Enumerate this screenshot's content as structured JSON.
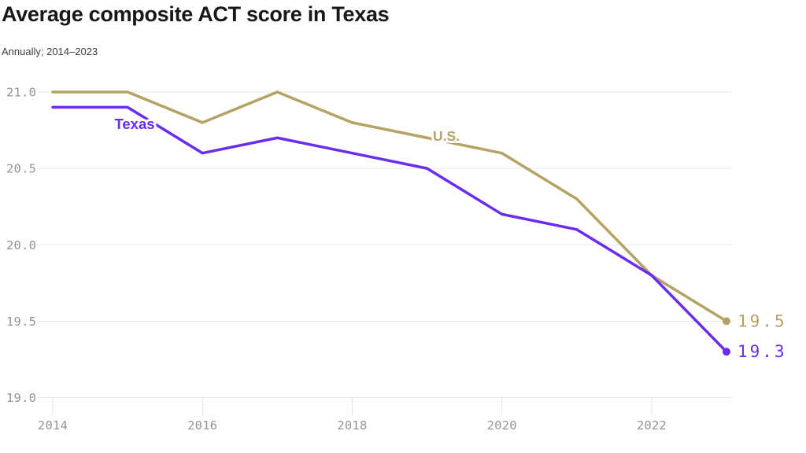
{
  "chart_data": {
    "type": "line",
    "title": "Average composite ACT score in Texas",
    "subtitle": "Annually; 2014–2023",
    "x": [
      2014,
      2015,
      2016,
      2017,
      2018,
      2019,
      2020,
      2021,
      2022,
      2023
    ],
    "series": [
      {
        "name": "U.S.",
        "color": "#b5a265",
        "values": [
          21.0,
          21.0,
          20.8,
          21.0,
          20.8,
          20.7,
          20.6,
          20.3,
          19.8,
          19.5
        ],
        "end_label": "19.5"
      },
      {
        "name": "Texas",
        "color": "#6a2df0",
        "values": [
          20.9,
          20.9,
          20.6,
          20.7,
          20.6,
          20.5,
          20.2,
          20.1,
          19.8,
          19.3
        ],
        "end_label": "19.3"
      }
    ],
    "ylim": [
      19.0,
      21.0
    ],
    "yticks": [
      {
        "value": 21.0,
        "label": "21.0"
      },
      {
        "value": 20.5,
        "label": "20.5"
      },
      {
        "value": 20.0,
        "label": "20.0"
      },
      {
        "value": 19.5,
        "label": "19.5"
      },
      {
        "value": 19.0,
        "label": "19.0"
      }
    ],
    "xticks": [
      {
        "value": 2014,
        "label": "2014"
      },
      {
        "value": 2016,
        "label": "2016"
      },
      {
        "value": 2018,
        "label": "2018"
      },
      {
        "value": 2020,
        "label": "2020"
      },
      {
        "value": 2022,
        "label": "2022"
      }
    ],
    "grid": "horizontal",
    "legend": "inline-labels",
    "colors": {
      "grid": "#e8e8e8",
      "x_tick_mark": "#e2e2e2",
      "tick_text": "#949494"
    }
  }
}
